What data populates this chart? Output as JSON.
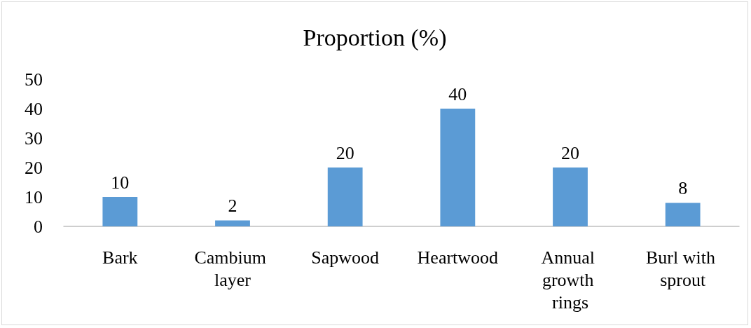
{
  "chart_data": {
    "type": "bar",
    "title": "Proportion (%)",
    "categories": [
      "Bark",
      "Cambium layer",
      "Sapwood",
      "Heartwood",
      "Annual growth rings",
      "Burl with sprout"
    ],
    "values": [
      10,
      2,
      20,
      40,
      20,
      8
    ],
    "color": "#5b9bd5",
    "ylim": [
      0,
      50
    ],
    "yticks": [
      0,
      10,
      20,
      30,
      40,
      50
    ],
    "grid": false,
    "data_labels": true
  }
}
